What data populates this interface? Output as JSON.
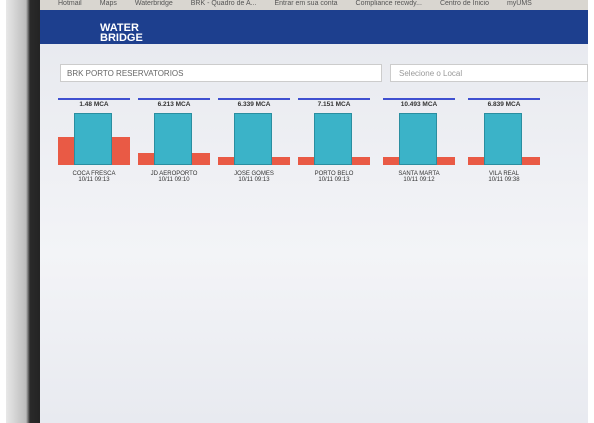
{
  "bookmarks": [
    "Hotmail",
    "Maps",
    "Waterbridge",
    "BRK - Quadro de A...",
    "Entrar em sua conta",
    "Compliance recwdy...",
    "Centro de Inicio",
    "myUMS"
  ],
  "logo": {
    "line1": "WATER",
    "line2": "BRIDGE"
  },
  "filters": {
    "group": "BRK PORTO RESERVATORIOS",
    "location": "Selecione o Local"
  },
  "tanks": [
    {
      "level": "1.48 MCA",
      "name": "COCA FRESCA",
      "time": "10/11 09:13"
    },
    {
      "level": "6.213 MCA",
      "name": "JD AEROPORTO",
      "time": "10/11 09:10"
    },
    {
      "level": "6.339 MCA",
      "name": "JOSE GOMES",
      "time": "10/11 09:13"
    },
    {
      "level": "7.151 MCA",
      "name": "PORTO BELO",
      "time": "10/11 09:13"
    },
    {
      "level": "10.493 MCA",
      "name": "SANTA MARTA",
      "time": "10/11 09:12"
    },
    {
      "level": "6.839 MCA",
      "name": "VILA REAL",
      "time": "10/11 09:38"
    }
  ]
}
